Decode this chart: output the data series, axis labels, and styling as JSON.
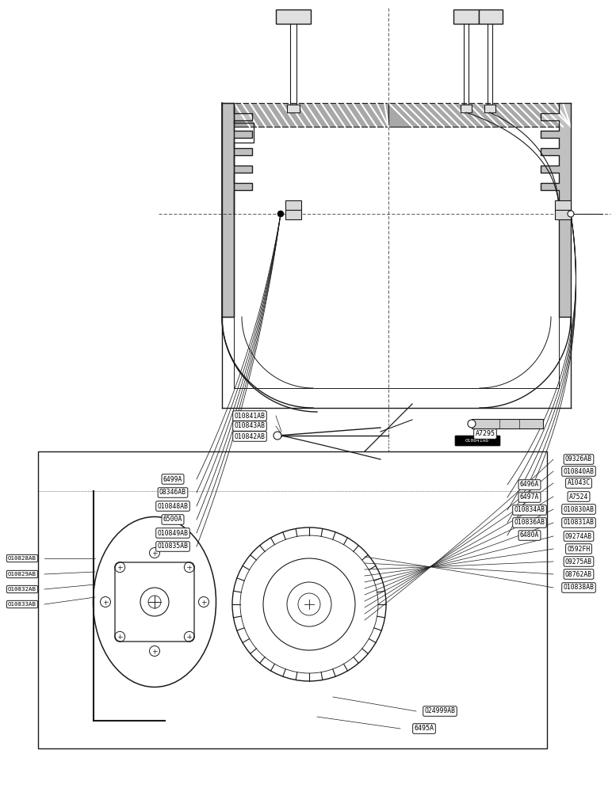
{
  "bg_color": "#ffffff",
  "lc": "#1a1a1a",
  "top_labels_left": [
    "6499A",
    "O8346AB",
    "O10848AB",
    "6500A",
    "O10849AB",
    "O10835AB"
  ],
  "top_labels_right": [
    "6496A",
    "6497A",
    "O10834AB",
    "O10836AB",
    "6480A"
  ],
  "bottom_labels_left": [
    "O10828AB",
    "O10829AB",
    "O10832AB",
    "O10833AB"
  ],
  "bottom_labels_top": [
    "O10841AB",
    "O10843AB",
    "O10842AB"
  ],
  "bottom_labels_right": [
    "O9326AB",
    "O10840AB",
    "A1043C",
    "A7524",
    "O10830AB",
    "O10831AB",
    "O9274AB",
    "O592FH",
    "O9275AB",
    "O8762AB",
    "O10838AB"
  ],
  "bottom_labels_bottom": [
    "O24999AB",
    "6495A"
  ],
  "top_extra": [
    "A7295",
    "O10841AB"
  ]
}
